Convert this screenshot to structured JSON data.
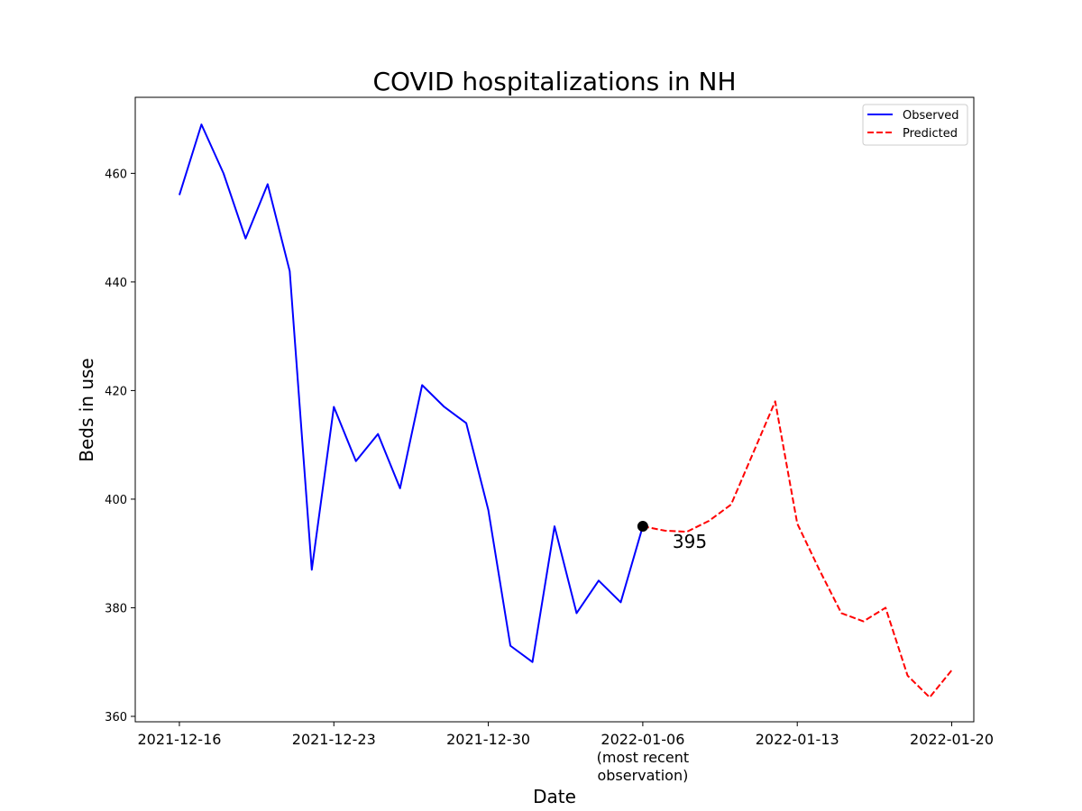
{
  "chart_data": {
    "type": "line",
    "title": "COVID hospitalizations in NH",
    "xlabel": "Date",
    "ylabel": "Beds in use",
    "xlim": [
      "2021-12-14",
      "2022-01-21"
    ],
    "ylim": [
      359,
      474
    ],
    "y_ticks": [
      360,
      380,
      400,
      420,
      440,
      460
    ],
    "x_ticks": [
      {
        "date": "2021-12-16",
        "label": [
          "2021-12-16"
        ]
      },
      {
        "date": "2021-12-23",
        "label": [
          "2021-12-23"
        ]
      },
      {
        "date": "2021-12-30",
        "label": [
          "2021-12-30"
        ]
      },
      {
        "date": "2022-01-06",
        "label": [
          "2022-01-06",
          "(most recent",
          "observation)"
        ]
      },
      {
        "date": "2022-01-13",
        "label": [
          "2022-01-13"
        ]
      },
      {
        "date": "2022-01-20",
        "label": [
          "2022-01-20"
        ]
      }
    ],
    "legend": {
      "position": "top-right"
    },
    "series": [
      {
        "name": "Observed",
        "color": "#0000ff",
        "style": "solid",
        "x": [
          "2021-12-16",
          "2021-12-17",
          "2021-12-18",
          "2021-12-19",
          "2021-12-20",
          "2021-12-21",
          "2021-12-22",
          "2021-12-23",
          "2021-12-24",
          "2021-12-25",
          "2021-12-26",
          "2021-12-27",
          "2021-12-28",
          "2021-12-29",
          "2021-12-30",
          "2021-12-31",
          "2022-01-01",
          "2022-01-02",
          "2022-01-03",
          "2022-01-04",
          "2022-01-05",
          "2022-01-06"
        ],
        "values": [
          456,
          469,
          460,
          448,
          458,
          442,
          387,
          417,
          407,
          412,
          402,
          421,
          417,
          414,
          398,
          373,
          370,
          395,
          379,
          385,
          381,
          395
        ]
      },
      {
        "name": "Predicted",
        "color": "#ff0000",
        "style": "dashed",
        "x": [
          "2022-01-06",
          "2022-01-07",
          "2022-01-08",
          "2022-01-09",
          "2022-01-10",
          "2022-01-11",
          "2022-01-12",
          "2022-01-13",
          "2022-01-14",
          "2022-01-15",
          "2022-01-16",
          "2022-01-17",
          "2022-01-18",
          "2022-01-19",
          "2022-01-20"
        ],
        "values": [
          395,
          394.2,
          394,
          396,
          399,
          408.5,
          418,
          395.5,
          387,
          379,
          377.5,
          380,
          367.5,
          363.5,
          368.5
        ]
      }
    ],
    "annotations": [
      {
        "date": "2022-01-06",
        "value": 395,
        "text": "395"
      }
    ]
  }
}
